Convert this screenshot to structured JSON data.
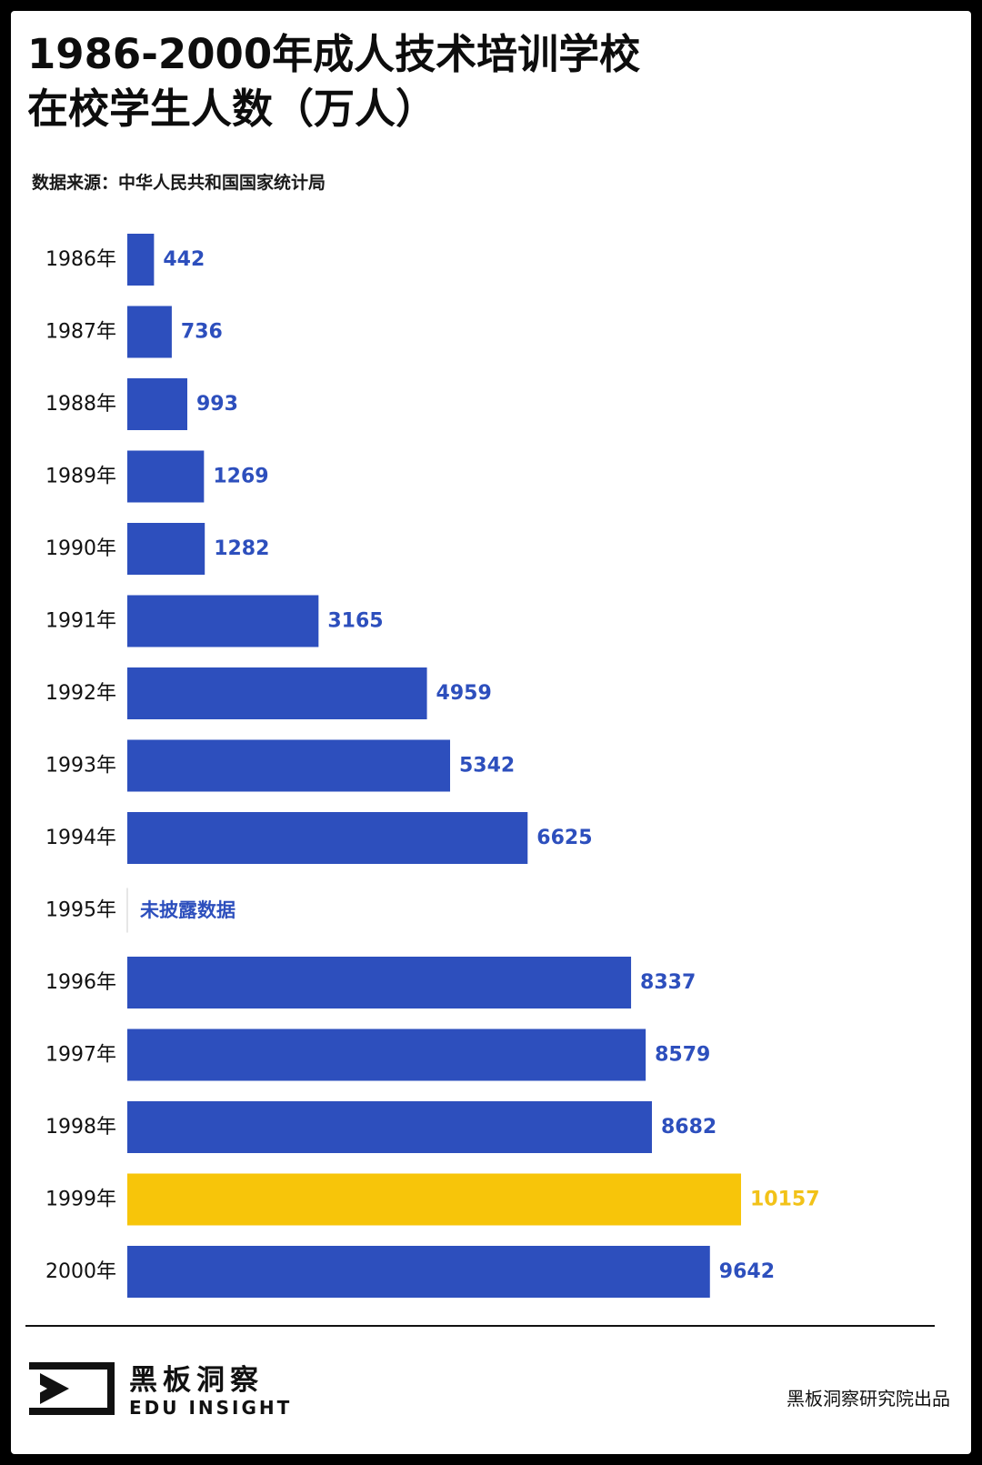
{
  "title_lines": [
    "1986-2000年成人技术培训学校",
    "在校学生人数（万人）"
  ],
  "source": "数据来源：中华人民共和国国家统计局",
  "colors": {
    "bar": "#2d4fbd",
    "highlight": "#f7c50a",
    "label": "#2d4fbd",
    "highlight_label": "#f2c218",
    "axis_text": "#111111"
  },
  "chart_data": {
    "type": "bar",
    "orientation": "horizontal",
    "unit": "万人",
    "categories": [
      "1986年",
      "1987年",
      "1988年",
      "1989年",
      "1990年",
      "1991年",
      "1992年",
      "1993年",
      "1994年",
      "1995年",
      "1996年",
      "1997年",
      "1998年",
      "1999年",
      "2000年"
    ],
    "values": [
      442,
      736,
      993,
      1269,
      1282,
      3165,
      4959,
      5342,
      6625,
      null,
      8337,
      8579,
      8682,
      10157,
      9642
    ],
    "value_labels": [
      "442",
      "736",
      "993",
      "1269",
      "1282",
      "3165",
      "4959",
      "5342",
      "6625",
      "未披露数据",
      "8337",
      "8579",
      "8682",
      "10157",
      "9642"
    ],
    "highlight_category": "1999年",
    "xlim": [
      0,
      10157
    ],
    "grid": false,
    "legend": "none"
  },
  "footer": {
    "logo_cn": "黑板洞察",
    "logo_en": "EDU INSIGHT",
    "credit": "黑板洞察研究院出品"
  }
}
